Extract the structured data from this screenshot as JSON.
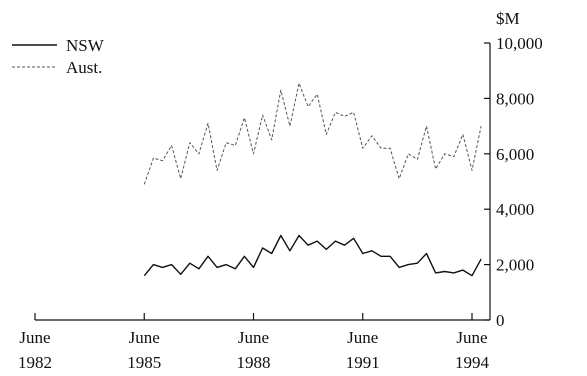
{
  "chart_data": {
    "type": "line",
    "ylabel": "$M",
    "ylim": [
      0,
      10000
    ],
    "y_ticks": [
      {
        "value": 0,
        "label": "0"
      },
      {
        "value": 2000,
        "label": "2,000"
      },
      {
        "value": 4000,
        "label": "4,000"
      },
      {
        "value": 6000,
        "label": "6,000"
      },
      {
        "value": 8000,
        "label": "8,000"
      },
      {
        "value": 10000,
        "label": "10,000"
      }
    ],
    "x_range": [
      1982.5,
      1994.5
    ],
    "x_ticks": [
      {
        "value": 1982.5,
        "line1": "June",
        "line2": "1982"
      },
      {
        "value": 1985.5,
        "line1": "June",
        "line2": "1985"
      },
      {
        "value": 1988.5,
        "line1": "June",
        "line2": "1988"
      },
      {
        "value": 1991.5,
        "line1": "June",
        "line2": "1991"
      },
      {
        "value": 1994.5,
        "line1": "June",
        "line2": "1994"
      }
    ],
    "legend_position": "top-left",
    "grid": false,
    "x_start": 1985.5,
    "x_step": 0.25,
    "series": [
      {
        "name": "NSW",
        "style": "solid",
        "color": "#111111",
        "values": [
          1600,
          2000,
          1900,
          2000,
          1650,
          2050,
          1850,
          2300,
          1900,
          2000,
          1850,
          2300,
          1900,
          2600,
          2400,
          3050,
          2500,
          3050,
          2700,
          2850,
          2550,
          2850,
          2700,
          2950,
          2400,
          2500,
          2300,
          2300,
          1900,
          2000,
          2050,
          2400,
          1700,
          1750,
          1700,
          1800,
          1600,
          2200
        ]
      },
      {
        "name": "Aust.",
        "style": "dashed",
        "color": "#555555",
        "values": [
          4900,
          5850,
          5750,
          6300,
          5100,
          6400,
          6000,
          7100,
          5400,
          6400,
          6300,
          7300,
          6000,
          7400,
          6500,
          8300,
          7000,
          8550,
          7700,
          8150,
          6700,
          7500,
          7350,
          7500,
          6200,
          6650,
          6200,
          6200,
          5100,
          6000,
          5800,
          7000,
          5450,
          6000,
          5900,
          6700,
          5400,
          7000
        ]
      }
    ]
  }
}
